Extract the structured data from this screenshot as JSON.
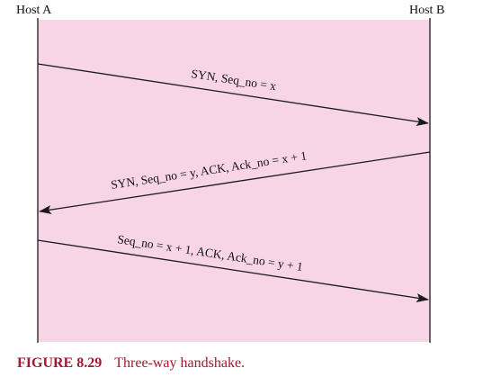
{
  "colors": {
    "panel_fill": "#f8d5e6",
    "line_color": "#1a1a1a",
    "caption_color": "#a0192e"
  },
  "hosts": {
    "a_label": "Host A",
    "b_label": "Host B"
  },
  "messages": [
    {
      "direction": "A-to-B",
      "label": "SYN, Seq_no = x"
    },
    {
      "direction": "B-to-A",
      "label": "SYN, Seq_no = y, ACK, Ack_no = x + 1"
    },
    {
      "direction": "A-to-B",
      "label": "Seq_no = x + 1, ACK, Ack_no = y + 1"
    }
  ],
  "caption": {
    "figure_number": "FIGURE 8.29",
    "title": "Three-way handshake."
  }
}
